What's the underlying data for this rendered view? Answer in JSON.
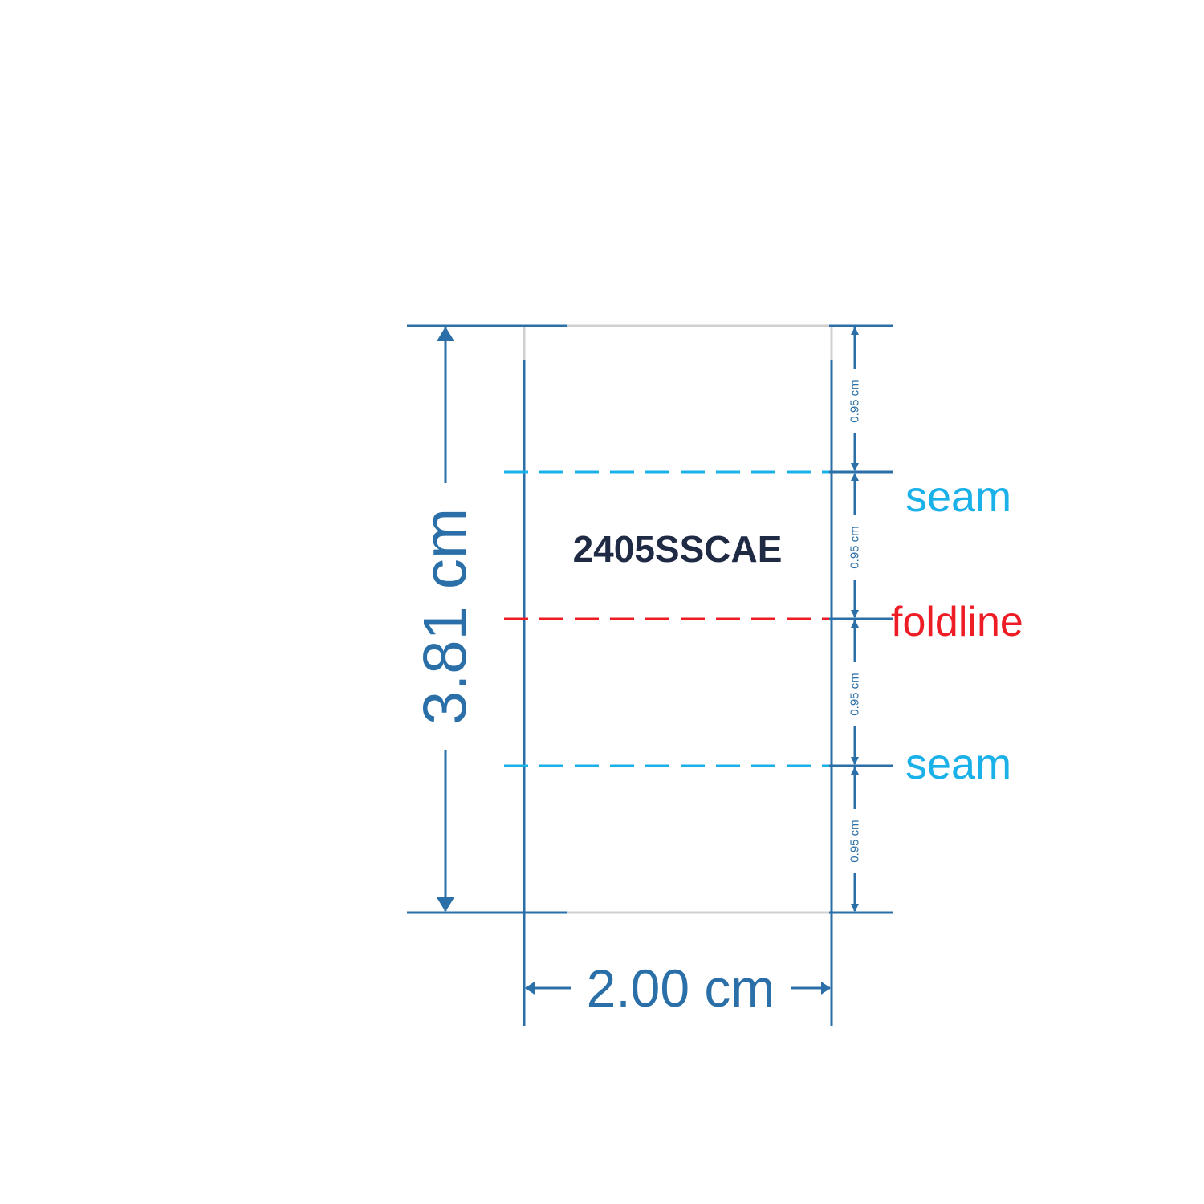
{
  "label": {
    "code": "2405SSCAE",
    "height_dimension": "3.81 cm",
    "width_dimension": "2.00 cm",
    "segment_dimensions": [
      "0.95 cm",
      "0.95 cm",
      "0.95 cm",
      "0.95 cm"
    ],
    "seam_top": "seam",
    "foldline": "foldline",
    "seam_bottom": "seam"
  },
  "colors": {
    "dimension": "#2a6fa8",
    "seam": "#1ab0e8",
    "foldline": "#ee1c24",
    "outline": "#d0d0d0",
    "code": "#1f2a44"
  }
}
